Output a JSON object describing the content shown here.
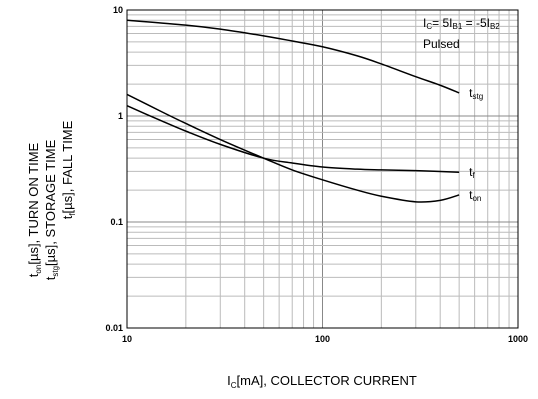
{
  "chart_data": {
    "type": "line",
    "x_scale": "log",
    "y_scale": "log",
    "xlim": [
      10,
      1000
    ],
    "ylim": [
      0.01,
      10
    ],
    "grid": true,
    "x_ticks": [
      "10",
      "100",
      "1000"
    ],
    "y_ticks": [
      "0.01",
      "0.1",
      "1",
      "10"
    ],
    "xlabel": {
      "main": "I",
      "sub": "C",
      "rest": "[mA], COLLECTOR CURRENT"
    },
    "ylabel_lines": [
      {
        "main": "t",
        "sub": "on",
        "rest": "[µs], TURN ON TIME"
      },
      {
        "main": "t",
        "sub": "stg",
        "rest": "[µs], STORAGE TIME"
      },
      {
        "main": "t",
        "sub": "f",
        "rest": "[µs], FALL TIME"
      }
    ],
    "annotations": {
      "condition": {
        "p1": "I",
        "s1": "C",
        "p2": "= 5I",
        "s2": "B1",
        "p3": " = -5I",
        "s3": "B2"
      },
      "pulsed": "Pulsed"
    },
    "series": [
      {
        "label_main": "t",
        "label_sub": "stg",
        "x": [
          10,
          20,
          30,
          50,
          70,
          100,
          150,
          200,
          300,
          400,
          500
        ],
        "y": [
          8.0,
          7.2,
          6.6,
          5.7,
          5.1,
          4.5,
          3.7,
          3.1,
          2.35,
          1.95,
          1.65
        ]
      },
      {
        "label_main": "t",
        "label_sub": "f",
        "x": [
          10,
          15,
          20,
          30,
          50,
          70,
          100,
          150,
          200,
          300,
          500
        ],
        "y": [
          1.25,
          0.9,
          0.72,
          0.54,
          0.4,
          0.36,
          0.33,
          0.315,
          0.31,
          0.305,
          0.295
        ]
      },
      {
        "label_main": "t",
        "label_sub": "on",
        "x": [
          10,
          15,
          20,
          30,
          50,
          70,
          100,
          150,
          200,
          300,
          400,
          500
        ],
        "y": [
          1.6,
          1.1,
          0.85,
          0.6,
          0.4,
          0.31,
          0.25,
          0.2,
          0.175,
          0.155,
          0.16,
          0.18
        ]
      }
    ]
  }
}
